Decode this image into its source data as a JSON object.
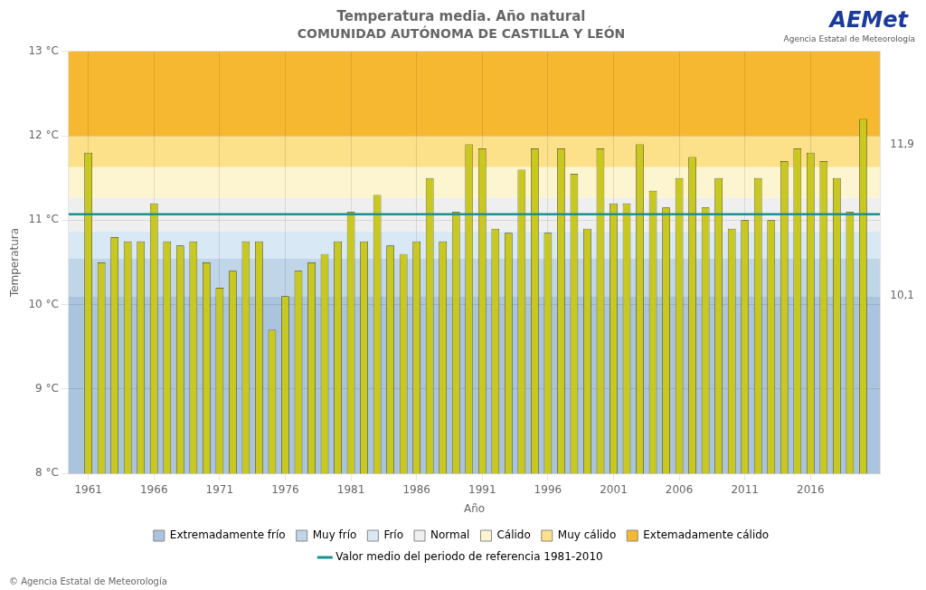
{
  "chart_data": {
    "type": "bar",
    "title": "Temperatura media. Año natural",
    "subtitle": "COMUNIDAD AUTÓNOMA DE CASTILLA Y LEÓN",
    "xlabel": "Año",
    "ylabel": "Temperatura",
    "x": [
      1961,
      1962,
      1963,
      1964,
      1965,
      1966,
      1967,
      1968,
      1969,
      1970,
      1971,
      1972,
      1973,
      1974,
      1975,
      1976,
      1977,
      1978,
      1979,
      1980,
      1981,
      1982,
      1983,
      1984,
      1985,
      1986,
      1987,
      1988,
      1989,
      1990,
      1991,
      1992,
      1993,
      1994,
      1995,
      1996,
      1997,
      1998,
      1999,
      2000,
      2001,
      2002,
      2003,
      2004,
      2005,
      2006,
      2007,
      2008,
      2009,
      2010,
      2011,
      2012,
      2013,
      2014,
      2015,
      2016,
      2017,
      2018,
      2019,
      2020
    ],
    "values": [
      11.8,
      10.5,
      10.8,
      10.75,
      10.75,
      11.2,
      10.75,
      10.7,
      10.75,
      10.5,
      10.2,
      10.4,
      10.75,
      10.75,
      9.7,
      10.1,
      10.4,
      10.5,
      10.6,
      10.75,
      11.1,
      10.75,
      11.3,
      10.7,
      10.6,
      10.75,
      11.5,
      10.75,
      11.1,
      11.9,
      11.85,
      10.9,
      10.85,
      11.6,
      11.85,
      10.85,
      11.85,
      11.55,
      10.9,
      11.85,
      11.2,
      11.2,
      11.9,
      11.35,
      11.15,
      11.5,
      11.75,
      11.15,
      11.5,
      10.9,
      11.0,
      11.5,
      11.0,
      11.7,
      11.85,
      11.8,
      11.7,
      11.5,
      11.1,
      12.2
    ],
    "color": "#c8c820",
    "xlim": [
      1959.5,
      2021.3
    ],
    "xticks": [
      1961,
      1966,
      1971,
      1976,
      1981,
      1986,
      1991,
      1996,
      2001,
      2006,
      2011,
      2016
    ],
    "ylim": [
      8,
      13
    ],
    "yticks": [
      {
        "value": 8,
        "label": "8 °C"
      },
      {
        "value": 9,
        "label": "9 °C"
      },
      {
        "value": 10,
        "label": "10 °C"
      },
      {
        "value": 11,
        "label": "11 °C"
      },
      {
        "value": 12,
        "label": "12 °C"
      },
      {
        "value": 13,
        "label": "13 °C"
      }
    ],
    "y2lim": [
      8,
      13
    ],
    "y2ticks": [
      {
        "value": 11.9,
        "label": "11,9"
      },
      {
        "value": 10.1,
        "label": "10,1"
      }
    ],
    "bands": [
      {
        "name": "Extremadamente frío",
        "color": "#aac4dd",
        "from": 8,
        "to": 10.1
      },
      {
        "name": "Muy frío",
        "color": "#c0d5e8",
        "from": 10.1,
        "to": 10.55
      },
      {
        "name": "Frío",
        "color": "#d8e9f5",
        "from": 10.55,
        "to": 10.87
      },
      {
        "name": "Normal",
        "color": "#efefef",
        "from": 10.87,
        "to": 11.27
      },
      {
        "name": "Cálido",
        "color": "#fdf5d0",
        "from": 11.27,
        "to": 11.63
      },
      {
        "name": "Muy cálido",
        "color": "#fce08a",
        "from": 11.63,
        "to": 12.0
      },
      {
        "name": "Extemadamente cálido",
        "color": "#f5b830",
        "from": 12.0,
        "to": 13
      }
    ],
    "reference_line": {
      "name": "Valor medio del periodo de referencia 1981-2010",
      "value": 11.07,
      "color": "#1a9090"
    },
    "annotations": [
      "AEMet",
      "Agencia Estatal de Meteorología",
      "© Agencia Estatal de Meteorología"
    ],
    "grid": true,
    "legend": "bottom"
  }
}
